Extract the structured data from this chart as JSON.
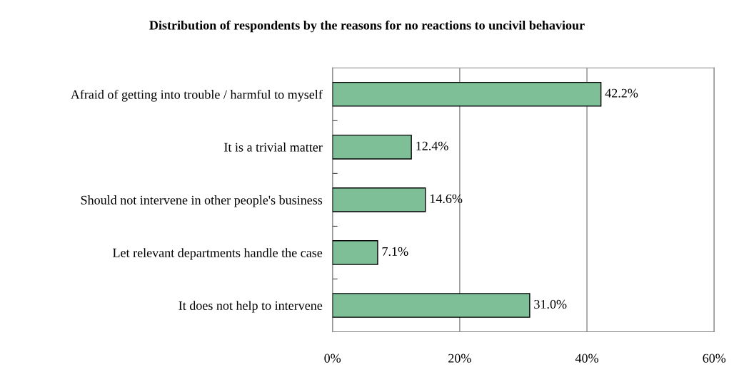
{
  "chart_data": {
    "type": "bar",
    "orientation": "horizontal",
    "title": "Distribution of respondents by the reasons for no reactions to uncivil behaviour",
    "categories": [
      "Afraid of getting into trouble / harmful to myself",
      "It is a trivial matter",
      "Should not intervene in other people's business",
      "Let relevant departments handle the case",
      "It does not help to intervene"
    ],
    "values": [
      42.2,
      12.4,
      14.6,
      7.1,
      31.0
    ],
    "value_labels": [
      "42.2%",
      "12.4%",
      "14.6%",
      "7.1%",
      "31.0%"
    ],
    "color": "#7fbf98",
    "xlim": [
      0,
      60
    ],
    "xticks": [
      {
        "value": 0,
        "label": "0%"
      },
      {
        "value": 20,
        "label": "20%"
      },
      {
        "value": 40,
        "label": "40%"
      },
      {
        "value": 60,
        "label": "60%"
      }
    ],
    "grid": "x",
    "legend": false
  }
}
